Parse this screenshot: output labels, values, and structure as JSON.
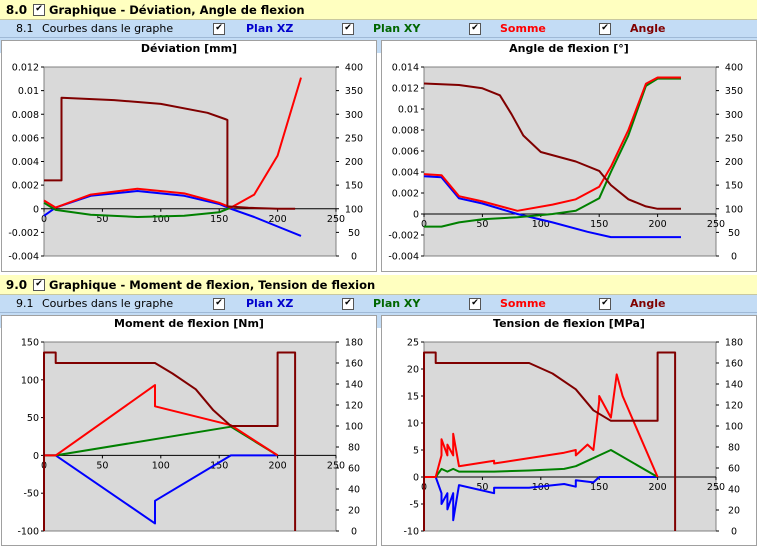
{
  "section8": {
    "number": "8.0",
    "title": "Graphique - Déviation, Angle de flexion"
  },
  "sub81": {
    "number": "8.1",
    "label": "Courbes dans le graphe",
    "plan_xz": "Plan XZ",
    "plan_xy": "Plan XY",
    "somme": "Somme",
    "angle": "Angle"
  },
  "section9": {
    "number": "9.0",
    "title": "Graphique - Moment de flexion, Tension de flexion"
  },
  "sub91": {
    "number": "9.1",
    "label": "Courbes dans le graphe",
    "plan_xz": "Plan XZ",
    "plan_xy": "Plan XY",
    "somme": "Somme",
    "angle": "Angle"
  },
  "colors": {
    "plan_xz": "#0000ff",
    "plan_xy": "#008000",
    "somme": "#ff0000",
    "angle": "#800000",
    "plot_bg": "#d9d9d9",
    "section_bg": "#ffffc0",
    "sub_bg": "#c3dcf5"
  },
  "checkbox_mark": "✔",
  "chart_data": [
    {
      "type": "line",
      "title": "Déviation [mm]",
      "xlim": [
        0,
        250
      ],
      "x_ticks": [
        0,
        50,
        100,
        150,
        200,
        250
      ],
      "ylim": [
        -0.004,
        0.012
      ],
      "y_ticks": [
        -0.004,
        -0.002,
        0,
        0.002,
        0.004,
        0.006,
        0.008,
        0.01,
        0.012
      ],
      "y2lim": [
        0,
        400
      ],
      "y2_ticks": [
        0,
        50,
        100,
        150,
        200,
        250,
        300,
        350,
        400
      ],
      "series": [
        {
          "role": "plan_xz",
          "axis": "y",
          "x": [
            0,
            10,
            40,
            80,
            120,
            150,
            160,
            180,
            200,
            220
          ],
          "y": [
            -0.0006,
            0.0001,
            0.0011,
            0.0015,
            0.0011,
            0.0004,
            0.0,
            -0.0007,
            -0.0015,
            -0.0023
          ]
        },
        {
          "role": "plan_xy",
          "axis": "y",
          "x": [
            0,
            10,
            40,
            80,
            120,
            150,
            160
          ],
          "y": [
            0.0005,
            -0.0001,
            -0.0005,
            -0.0007,
            -0.0006,
            -0.0003,
            0.0001
          ]
        },
        {
          "role": "somme",
          "axis": "y",
          "x": [
            0,
            10,
            40,
            80,
            120,
            150,
            160,
            180,
            200,
            220
          ],
          "y": [
            0.0007,
            0.0001,
            0.0012,
            0.0017,
            0.0013,
            0.0005,
            0.0001,
            0.0012,
            0.0045,
            0.0111
          ]
        },
        {
          "role": "angle",
          "axis": "y2",
          "x": [
            0,
            15,
            15,
            60,
            100,
            140,
            155,
            157,
            157,
            175,
            200,
            215
          ],
          "y": [
            160,
            160,
            335,
            330,
            322,
            303,
            290,
            288,
            105,
            102,
            100,
            100
          ]
        }
      ]
    },
    {
      "type": "line",
      "title": "Angle de flexion [°]",
      "xlim": [
        0,
        250
      ],
      "x_ticks": [
        0,
        50,
        100,
        150,
        200,
        250
      ],
      "ylim": [
        -0.004,
        0.014
      ],
      "y_ticks": [
        -0.004,
        -0.002,
        0,
        0.002,
        0.004,
        0.006,
        0.008,
        0.01,
        0.012,
        0.014
      ],
      "y2lim": [
        0,
        400
      ],
      "y2_ticks": [
        0,
        50,
        100,
        150,
        200,
        250,
        300,
        350,
        400
      ],
      "series": [
        {
          "role": "plan_xz",
          "axis": "y",
          "x": [
            0,
            15,
            30,
            50,
            80,
            110,
            140,
            160,
            180,
            220
          ],
          "y": [
            0.0036,
            0.0035,
            0.0015,
            0.001,
            0.0,
            -0.0008,
            -0.0017,
            -0.0022,
            -0.0022,
            -0.0022
          ]
        },
        {
          "role": "plan_xy",
          "axis": "y",
          "x": [
            0,
            15,
            30,
            50,
            80,
            110,
            130,
            150,
            160,
            175,
            190,
            200,
            220
          ],
          "y": [
            -0.0012,
            -0.0012,
            -0.0008,
            -0.0005,
            -0.0003,
            0.0,
            0.0003,
            0.0015,
            0.004,
            0.0075,
            0.0122,
            0.0129,
            0.0129
          ]
        },
        {
          "role": "somme",
          "axis": "y",
          "x": [
            0,
            15,
            30,
            50,
            80,
            110,
            130,
            150,
            160,
            175,
            190,
            200,
            220
          ],
          "y": [
            0.0038,
            0.0037,
            0.0017,
            0.0012,
            0.0003,
            0.0009,
            0.0014,
            0.0026,
            0.0045,
            0.008,
            0.0124,
            0.013,
            0.013
          ]
        },
        {
          "role": "angle",
          "axis": "y2",
          "x": [
            0,
            30,
            50,
            65,
            75,
            85,
            100,
            130,
            150,
            160,
            175,
            190,
            200,
            220
          ],
          "y": [
            365,
            362,
            355,
            340,
            300,
            255,
            220,
            200,
            180,
            150,
            120,
            105,
            100,
            100
          ]
        }
      ]
    },
    {
      "type": "line",
      "title": "Moment de flexion [Nm]",
      "xlim": [
        0,
        250
      ],
      "x_ticks": [
        0,
        50,
        100,
        150,
        200,
        250
      ],
      "ylim": [
        -100,
        150
      ],
      "y_ticks": [
        -100,
        -50,
        0,
        50,
        100,
        150
      ],
      "y2lim": [
        0,
        180
      ],
      "y2_ticks": [
        0,
        20,
        40,
        60,
        80,
        100,
        120,
        140,
        160,
        180
      ],
      "series": [
        {
          "role": "plan_xz",
          "axis": "y",
          "x": [
            0,
            10,
            95,
            95,
            160,
            200
          ],
          "y": [
            0,
            0,
            -90,
            -60,
            0,
            0
          ]
        },
        {
          "role": "plan_xy",
          "axis": "y",
          "x": [
            0,
            10,
            160,
            200
          ],
          "y": [
            0,
            0,
            38,
            0
          ]
        },
        {
          "role": "somme",
          "axis": "y",
          "x": [
            0,
            10,
            95,
            95,
            160,
            200
          ],
          "y": [
            0,
            0,
            93,
            65,
            40,
            0
          ]
        },
        {
          "role": "angle",
          "axis": "y2",
          "x": [
            0,
            0,
            10,
            10,
            95,
            110,
            130,
            145,
            160,
            200,
            200,
            215,
            215
          ],
          "y": [
            0,
            170,
            170,
            160,
            160,
            150,
            135,
            115,
            100,
            100,
            170,
            170,
            0
          ]
        }
      ]
    },
    {
      "type": "line",
      "title": "Tension de flexion [MPa]",
      "xlim": [
        0,
        250
      ],
      "x_ticks": [
        0,
        50,
        100,
        150,
        200,
        250
      ],
      "ylim": [
        -10,
        25
      ],
      "y_ticks": [
        -10,
        -5,
        0,
        5,
        10,
        15,
        20,
        25
      ],
      "y2lim": [
        0,
        180
      ],
      "y2_ticks": [
        0,
        20,
        40,
        60,
        80,
        100,
        120,
        140,
        160,
        180
      ],
      "series": [
        {
          "role": "plan_xz",
          "axis": "y",
          "x": [
            0,
            10,
            15,
            15,
            20,
            20,
            25,
            25,
            30,
            60,
            60,
            90,
            120,
            130,
            130,
            145,
            150,
            160,
            200
          ],
          "y": [
            0,
            0,
            -3,
            -5,
            -3,
            -6,
            -3,
            -8,
            -1.5,
            -3,
            -2,
            -2,
            -1.3,
            -1.8,
            -0.6,
            -1,
            0,
            0,
            0
          ]
        },
        {
          "role": "plan_xy",
          "axis": "y",
          "x": [
            0,
            10,
            15,
            20,
            25,
            30,
            60,
            90,
            120,
            130,
            140,
            150,
            160,
            200
          ],
          "y": [
            0,
            0,
            1.5,
            1,
            1.5,
            1,
            1,
            1.2,
            1.5,
            2,
            3,
            4,
            5,
            0
          ]
        },
        {
          "role": "somme",
          "axis": "y",
          "x": [
            0,
            10,
            15,
            15,
            20,
            20,
            25,
            25,
            30,
            60,
            60,
            90,
            120,
            130,
            130,
            140,
            145,
            150,
            150,
            160,
            165,
            170,
            200
          ],
          "y": [
            0,
            0,
            4,
            7,
            4,
            6,
            4,
            8,
            2,
            3,
            2.5,
            3.5,
            4.5,
            5,
            4,
            6,
            5,
            14,
            15,
            11,
            19,
            15,
            0
          ]
        },
        {
          "role": "angle",
          "axis": "y2",
          "x": [
            0,
            0,
            10,
            10,
            90,
            110,
            130,
            145,
            160,
            200,
            200,
            215,
            215
          ],
          "y": [
            0,
            170,
            170,
            160,
            160,
            150,
            135,
            115,
            105,
            105,
            170,
            170,
            0
          ]
        }
      ]
    }
  ]
}
